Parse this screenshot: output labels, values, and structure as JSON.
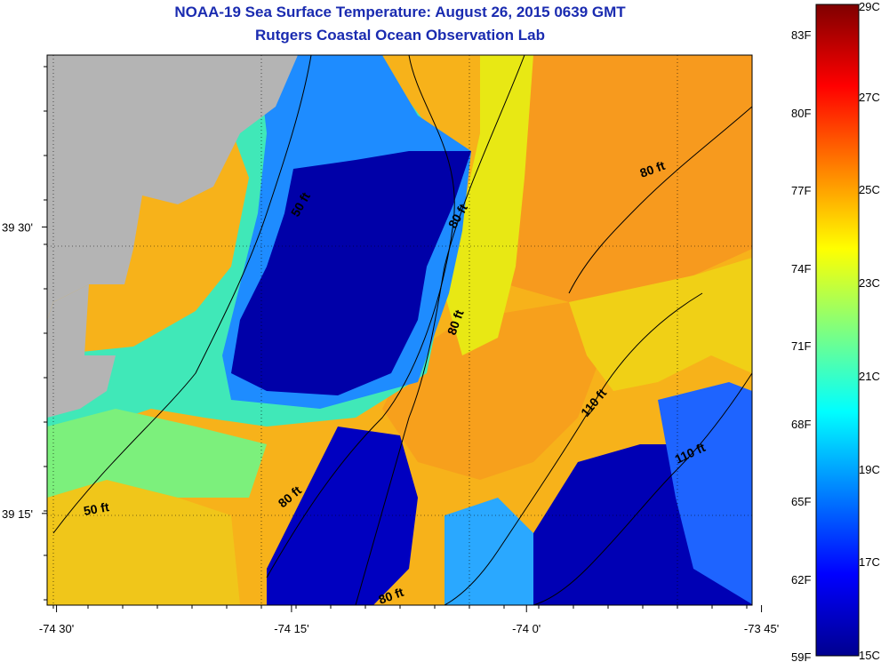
{
  "header": {
    "title": "NOAA-19 Sea Surface Temperature:  August 26, 2015 0639 GMT",
    "subtitle": "Rutgers Coastal Ocean Observation Lab"
  },
  "axes": {
    "x_ticks": [
      {
        "label": "-74 30'",
        "lon": -74.5
      },
      {
        "label": "-74 15'",
        "lon": -74.25
      },
      {
        "label": "-74 0'",
        "lon": -74.0
      },
      {
        "label": "-73 45'",
        "lon": -73.75
      }
    ],
    "y_ticks": [
      {
        "label": "39 30'",
        "lat": 39.5
      },
      {
        "label": "39 15'",
        "lat": 39.25
      }
    ],
    "lon_range": [
      -74.51,
      -73.76
    ],
    "lat_range": [
      39.17,
      39.65
    ]
  },
  "contour_labels": [
    {
      "text": "50 ft"
    },
    {
      "text": "50 ft"
    },
    {
      "text": "80 ft"
    },
    {
      "text": "80 ft"
    },
    {
      "text": "80 ft"
    },
    {
      "text": "80 ft"
    },
    {
      "text": "80 ft"
    },
    {
      "text": "110 ft"
    },
    {
      "text": "110 ft"
    }
  ],
  "colorbar": {
    "scale": "jet",
    "range_c": [
      15,
      29
    ],
    "celsius_labels": [
      "29C",
      "27C",
      "25C",
      "23C",
      "21C",
      "19C",
      "17C",
      "15C"
    ],
    "fahrenheit_labels": [
      "83F",
      "80F",
      "77F",
      "74F",
      "71F",
      "68F",
      "65F",
      "62F",
      "59F"
    ]
  },
  "colors": {
    "land": "#b4b4b4",
    "title": "#1a2bb0"
  }
}
